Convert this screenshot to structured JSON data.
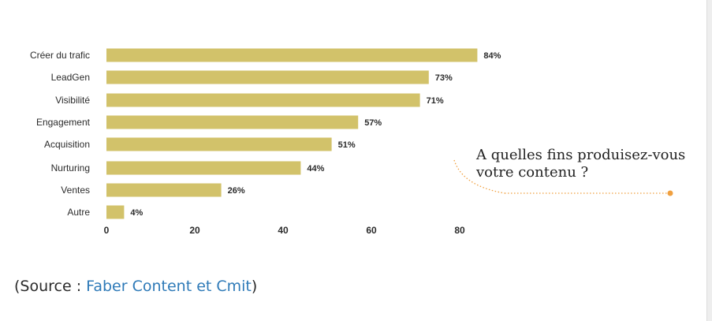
{
  "chart_data": {
    "type": "bar",
    "orientation": "horizontal",
    "categories": [
      "Créer du trafic",
      "LeadGen",
      "Visibilité",
      "Engagement",
      "Acquisition",
      "Nurturing",
      "Ventes",
      "Autre"
    ],
    "values": [
      84,
      73,
      71,
      57,
      51,
      44,
      26,
      4
    ],
    "value_labels": [
      "84%",
      "73%",
      "71%",
      "57%",
      "51%",
      "44%",
      "26%",
      "4%"
    ],
    "x_ticks": [
      "0",
      "20",
      "40",
      "60",
      "80"
    ],
    "xlim": [
      0,
      84
    ],
    "bar_color": "#d2c26a",
    "grid": false,
    "title": "",
    "xlabel": "",
    "ylabel": ""
  },
  "callout": {
    "line1": "A quelles fins produisez-vous",
    "line2": "votre contenu ?",
    "dot_color": "#f0a040"
  },
  "source": {
    "prefix": "(Source : ",
    "link_text": "Faber Content et Cmit",
    "suffix": ")",
    "link_color": "#2e7ab8"
  }
}
